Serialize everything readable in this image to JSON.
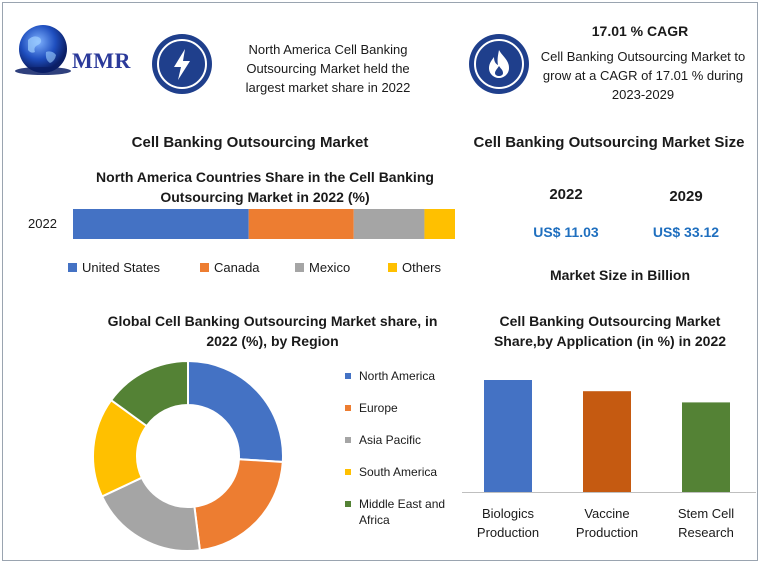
{
  "brand": {
    "name": "MMR"
  },
  "header": {
    "highlight_text": "North America Cell Banking Outsourcing Market held the largest market share in 2022",
    "cagr_title": "17.01 % CAGR",
    "cagr_text": "Cell Banking Outsourcing Market to grow at a CAGR of 17.01 % during 2023-2029"
  },
  "left_section_title": "Cell Banking Outsourcing Market",
  "right_section_title": "Cell Banking Outsourcing Market Size",
  "market_size": {
    "years": [
      "2022",
      "2029"
    ],
    "values": [
      "US$ 11.03",
      "US$ 33.12"
    ],
    "unit_label": "Market Size in Billion"
  },
  "colors": {
    "blue": "#4472c4",
    "orange": "#ed7d31",
    "gray": "#a5a5a5",
    "yellow": "#ffc000",
    "green": "#548235",
    "bar_blue": "#4472c4",
    "bar_orange": "#c55a11",
    "bar_green": "#548235",
    "money_blue": "#1f6fbf"
  },
  "chart_data": [
    {
      "type": "bar",
      "orientation": "horizontal-stacked",
      "title": "North America Countries Share in the Cell Banking Outsourcing Market in 2022 (%)",
      "categories": [
        "2022"
      ],
      "series": [
        {
          "name": "United States",
          "values": [
            46
          ]
        },
        {
          "name": "Canada",
          "values": [
            27.5
          ]
        },
        {
          "name": "Mexico",
          "values": [
            18.5
          ]
        },
        {
          "name": "Others",
          "values": [
            8
          ]
        }
      ],
      "xlim": [
        0,
        100
      ],
      "legend": "bottom"
    },
    {
      "type": "pie",
      "style": "donut",
      "title": "Global Cell Banking Outsourcing Market share, in 2022 (%), by Region",
      "categories": [
        "North America",
        "Europe",
        "Asia Pacific",
        "South America",
        "Middle East and Africa"
      ],
      "values": [
        26,
        22,
        20,
        17,
        15
      ],
      "legend": "right"
    },
    {
      "type": "bar",
      "title": "Cell Banking Outsourcing Market Share,by Application (in %) in 2022",
      "categories": [
        "Biologics Production",
        "Vaccine Production",
        "Stem Cell Research"
      ],
      "values": [
        40,
        36,
        32
      ],
      "ylim": [
        0,
        40
      ],
      "grid": false
    }
  ]
}
